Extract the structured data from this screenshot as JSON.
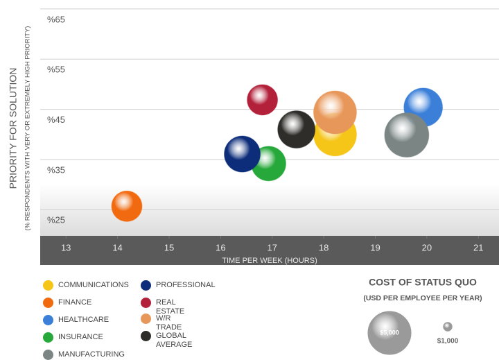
{
  "chart_data": {
    "type": "bubble",
    "x_label": "TIME PER WEEK (HOURS)",
    "y_label": "PRIORITY FOR SOLUTION",
    "y_label_sub": "(% RESPONDENTS WITH VERY OR EXTREMELY HIGH PRIORITY)",
    "xlim": [
      12.5,
      21.4
    ],
    "ylim": [
      22,
      69
    ],
    "xticks": [
      13,
      14,
      15,
      16,
      17,
      18,
      19,
      20,
      21
    ],
    "yticks": [
      {
        "value": 65,
        "label": "%65"
      },
      {
        "value": 55,
        "label": "%55"
      },
      {
        "value": 45,
        "label": "%45"
      },
      {
        "value": 35,
        "label": "%35"
      },
      {
        "value": 25,
        "label": "%25"
      }
    ],
    "grid": true,
    "series": [
      {
        "name": "COMMUNICATIONS",
        "color": "#f5c518",
        "x": [
          18.22
        ],
        "values": [
          42.2
        ],
        "sizes": [
          5000
        ]
      },
      {
        "name": "FINANCE",
        "color": "#f26a0f",
        "x": [
          14.18
        ],
        "values": [
          27.9
        ],
        "sizes": [
          3550
        ]
      },
      {
        "name": "HEALTHCARE",
        "color": "#3b7fd9",
        "x": [
          19.93
        ],
        "values": [
          47.6
        ],
        "sizes": [
          4500
        ]
      },
      {
        "name": "INSURANCE",
        "color": "#26a83a",
        "x": [
          16.93
        ],
        "values": [
          36.4
        ],
        "sizes": [
          4030
        ]
      },
      {
        "name": "MANUFACTURING",
        "color": "#7a8584",
        "x": [
          19.61
        ],
        "values": [
          42.1
        ],
        "sizes": [
          5160
        ]
      },
      {
        "name": "PROFESSIONAL",
        "color": "#0d2d7a",
        "x": [
          16.42
        ],
        "values": [
          38.3
        ],
        "sizes": [
          4200
        ]
      },
      {
        "name": "REAL ESTATE",
        "color": "#b3203a",
        "x": [
          16.81
        ],
        "values": [
          49.1
        ],
        "sizes": [
          3550
        ]
      },
      {
        "name": "W/R TRADE",
        "color": "#e8975a",
        "x": [
          18.22
        ],
        "values": [
          46.6
        ],
        "sizes": [
          5000
        ]
      },
      {
        "name": "GLOBAL AVERAGE",
        "color": "#2f2d2a",
        "x": [
          17.47
        ],
        "values": [
          43.2
        ],
        "sizes": [
          4350
        ]
      }
    ],
    "size_legend": {
      "title": "COST OF STATUS QUO",
      "subtitle": "(USD PER EMPLOYEE PER YEAR)",
      "values": [
        5000,
        1000
      ],
      "value_labels": [
        "$5,000",
        "$1,000"
      ]
    }
  }
}
